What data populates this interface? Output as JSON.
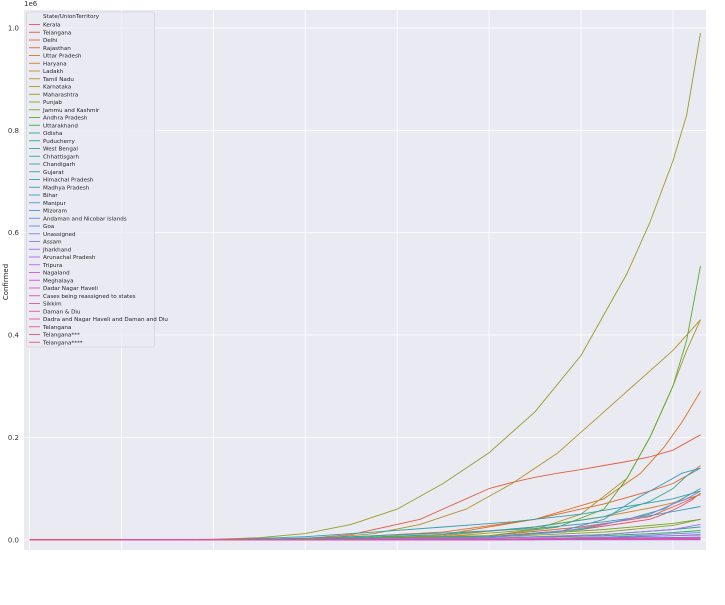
{
  "chart_data": {
    "type": "line",
    "title": "",
    "xlabel": "",
    "ylabel": "Confirmed",
    "y_offset_label": "1e6",
    "ylim": [
      -0.02,
      1.035
    ],
    "xlim": [
      -1.2,
      147.2
    ],
    "y_ticks": [
      {
        "value": 0.0,
        "label": "0.0"
      },
      {
        "value": 0.2,
        "label": "0.2"
      },
      {
        "value": 0.4,
        "label": "0.4"
      },
      {
        "value": 0.6,
        "label": "0.6"
      },
      {
        "value": 0.8,
        "label": "0.8"
      },
      {
        "value": 1.0,
        "label": "1.0"
      }
    ],
    "x_gridlines": [
      0,
      20,
      40,
      60,
      80,
      100,
      120,
      140
    ],
    "grid": true,
    "legend_position": "top-left",
    "legend_title": "State/UnionTerritory",
    "series": [
      {
        "name": "Kerala",
        "color": "#e6526c",
        "x": [
          0,
          60,
          100,
          120,
          135,
          138,
          141,
          144,
          146
        ],
        "y": [
          1e-06,
          0.0005,
          0.006,
          0.02,
          0.04,
          0.05,
          0.062,
          0.077,
          0.091
        ]
      },
      {
        "name": "Telangana",
        "color": "#e4584a",
        "x": [
          0,
          60,
          100,
          120,
          135,
          138,
          141,
          144,
          146
        ],
        "y": [
          0.0,
          0.001,
          0.008,
          0.025,
          0.045,
          0.057,
          0.068,
          0.08,
          0.09
        ]
      },
      {
        "name": "Delhi",
        "color": "#e1603e",
        "x": [
          0,
          58,
          70,
          85,
          95,
          100,
          105,
          110,
          115,
          120,
          125,
          130,
          135,
          140,
          146
        ],
        "y": [
          0.0,
          0.001,
          0.01,
          0.04,
          0.08,
          0.1,
          0.112,
          0.122,
          0.13,
          0.137,
          0.145,
          0.153,
          0.162,
          0.175,
          0.205
        ]
      },
      {
        "name": "Rajasthan",
        "color": "#dc6a2e",
        "x": [
          0,
          60,
          90,
          110,
          125,
          135,
          140,
          143,
          146
        ],
        "y": [
          0.0,
          0.001,
          0.015,
          0.04,
          0.07,
          0.095,
          0.11,
          0.125,
          0.145
        ]
      },
      {
        "name": "Uttar Pradesh",
        "color": "#d7731f",
        "x": [
          0,
          60,
          90,
          110,
          125,
          133,
          138,
          142,
          146
        ],
        "y": [
          0.0,
          0.001,
          0.01,
          0.04,
          0.08,
          0.13,
          0.18,
          0.23,
          0.29
        ]
      },
      {
        "name": "Haryana",
        "color": "#c98626",
        "x": [
          0,
          60,
          90,
          110,
          125,
          135,
          140,
          143,
          146
        ],
        "y": [
          0.0,
          0.0005,
          0.008,
          0.025,
          0.045,
          0.062,
          0.072,
          0.08,
          0.088
        ]
      },
      {
        "name": "Ladakh",
        "color": "#bd8e27",
        "x": [
          0,
          100,
          146
        ],
        "y": [
          0.0,
          0.0005,
          0.003
        ]
      },
      {
        "name": "Tamil Nadu",
        "color": "#b39326",
        "x": [
          0,
          55,
          65,
          75,
          85,
          95,
          105,
          115,
          125,
          135,
          140,
          146
        ],
        "y": [
          0.0,
          0.001,
          0.004,
          0.012,
          0.03,
          0.06,
          0.11,
          0.17,
          0.25,
          0.33,
          0.37,
          0.43
        ]
      },
      {
        "name": "Karnataka",
        "color": "#a69825",
        "x": [
          0,
          60,
          90,
          110,
          120,
          130,
          135,
          140,
          143,
          146
        ],
        "y": [
          0.0,
          0.001,
          0.006,
          0.02,
          0.05,
          0.12,
          0.2,
          0.3,
          0.37,
          0.43
        ]
      },
      {
        "name": "Maharashtra",
        "color": "#989d25",
        "x": [
          0,
          20,
          40,
          50,
          60,
          70,
          80,
          90,
          100,
          110,
          120,
          125,
          130,
          135,
          140,
          143,
          146
        ],
        "y": [
          0.0,
          0.0,
          0.001,
          0.004,
          0.012,
          0.03,
          0.06,
          0.11,
          0.17,
          0.25,
          0.36,
          0.44,
          0.52,
          0.62,
          0.74,
          0.83,
          0.99
        ]
      },
      {
        "name": "Punjab",
        "color": "#89a226",
        "x": [
          0,
          60,
          100,
          125,
          140,
          146
        ],
        "y": [
          0.0,
          0.0005,
          0.005,
          0.015,
          0.028,
          0.04
        ]
      },
      {
        "name": "Jammu and Kashmir",
        "color": "#78a628",
        "x": [
          0,
          60,
          100,
          125,
          140,
          146
        ],
        "y": [
          0.0,
          0.0005,
          0.006,
          0.02,
          0.032,
          0.04
        ]
      },
      {
        "name": "Andhra Pradesh",
        "color": "#5daa2b",
        "x": [
          0,
          60,
          100,
          115,
          125,
          130,
          135,
          140,
          143,
          146
        ],
        "y": [
          0.0,
          0.001,
          0.008,
          0.025,
          0.06,
          0.12,
          0.2,
          0.3,
          0.39,
          0.535
        ]
      },
      {
        "name": "Uttarakhand",
        "color": "#2fae4a",
        "x": [
          0,
          60,
          100,
          125,
          140,
          146
        ],
        "y": [
          0.0,
          0.0003,
          0.003,
          0.008,
          0.014,
          0.018
        ]
      },
      {
        "name": "Odisha",
        "color": "#30ab6f",
        "x": [
          0,
          60,
          100,
          120,
          130,
          138,
          142,
          146
        ],
        "y": [
          0.0,
          0.0005,
          0.006,
          0.02,
          0.04,
          0.06,
          0.08,
          0.1
        ]
      },
      {
        "name": "Puducherry",
        "color": "#31a882",
        "x": [
          0,
          60,
          100,
          125,
          140,
          146
        ],
        "y": [
          0.0,
          0.0001,
          0.001,
          0.004,
          0.008,
          0.01
        ]
      },
      {
        "name": "West Bengal",
        "color": "#32a68f",
        "x": [
          0,
          60,
          90,
          110,
          125,
          135,
          140,
          143,
          146
        ],
        "y": [
          0.0,
          0.001,
          0.01,
          0.025,
          0.045,
          0.075,
          0.1,
          0.125,
          0.14
        ]
      },
      {
        "name": "Chhattisgarh",
        "color": "#33a498",
        "x": [
          0,
          60,
          100,
          125,
          140,
          146
        ],
        "y": [
          0.0,
          0.0003,
          0.003,
          0.01,
          0.02,
          0.025
        ]
      },
      {
        "name": "Chandigarh",
        "color": "#34a2a0",
        "x": [
          0,
          60,
          100,
          125,
          146
        ],
        "y": [
          0.0,
          0.0002,
          0.0008,
          0.002,
          0.004
        ]
      },
      {
        "name": "Gujarat",
        "color": "#35a1a7",
        "x": [
          0,
          45,
          60,
          75,
          90,
          105,
          120,
          130,
          140,
          146
        ],
        "y": [
          0.0,
          0.001,
          0.006,
          0.015,
          0.025,
          0.035,
          0.05,
          0.065,
          0.08,
          0.095
        ]
      },
      {
        "name": "Himachal Pradesh",
        "color": "#379fae",
        "x": [
          0,
          60,
          100,
          125,
          146
        ],
        "y": [
          0.0,
          0.0002,
          0.001,
          0.003,
          0.005
        ]
      },
      {
        "name": "Madhya Pradesh",
        "color": "#399db6",
        "x": [
          0,
          50,
          70,
          90,
          110,
          125,
          135,
          140,
          146
        ],
        "y": [
          0.0,
          0.001,
          0.006,
          0.013,
          0.022,
          0.035,
          0.047,
          0.055,
          0.065
        ]
      },
      {
        "name": "Bihar",
        "color": "#3b9bc0",
        "x": [
          0,
          60,
          100,
          115,
          125,
          132,
          138,
          142,
          146
        ],
        "y": [
          0.0,
          0.0003,
          0.005,
          0.015,
          0.04,
          0.08,
          0.11,
          0.13,
          0.14
        ]
      },
      {
        "name": "Manipur",
        "color": "#3e98cc",
        "x": [
          0,
          100,
          146
        ],
        "y": [
          0.0,
          0.0003,
          0.005
        ]
      },
      {
        "name": "Mizoram",
        "color": "#4294dc",
        "x": [
          0,
          100,
          146
        ],
        "y": [
          0.0,
          0.0001,
          0.001
        ]
      },
      {
        "name": "Andaman and Nicobar Islands",
        "color": "#4d8ee9",
        "x": [
          0,
          100,
          146
        ],
        "y": [
          0.0,
          0.0002,
          0.003
        ]
      },
      {
        "name": "Goa",
        "color": "#6488ec",
        "x": [
          0,
          100,
          125,
          146
        ],
        "y": [
          0.0,
          0.001,
          0.005,
          0.014
        ]
      },
      {
        "name": "Unassigned",
        "color": "#7782ec",
        "x": [
          0,
          100,
          146
        ],
        "y": [
          0.0,
          0.0,
          0.0
        ]
      },
      {
        "name": "Assam",
        "color": "#8a7ced",
        "x": [
          0,
          60,
          100,
          115,
          125,
          135,
          140,
          143,
          146
        ],
        "y": [
          0.0,
          0.0003,
          0.005,
          0.015,
          0.03,
          0.05,
          0.07,
          0.08,
          0.095
        ]
      },
      {
        "name": "Jharkhand",
        "color": "#9e73ed",
        "x": [
          0,
          60,
          100,
          125,
          140,
          146
        ],
        "y": [
          0.0,
          0.0003,
          0.003,
          0.01,
          0.02,
          0.03
        ]
      },
      {
        "name": "Arunachal Pradesh",
        "color": "#b06aec",
        "x": [
          0,
          100,
          146
        ],
        "y": [
          0.0,
          0.0002,
          0.003
        ]
      },
      {
        "name": "Tripura",
        "color": "#c460ea",
        "x": [
          0,
          100,
          146
        ],
        "y": [
          0.0,
          0.001,
          0.009
        ]
      },
      {
        "name": "Nagaland",
        "color": "#d255e0",
        "x": [
          0,
          100,
          146
        ],
        "y": [
          0.0,
          0.0003,
          0.004
        ]
      },
      {
        "name": "Meghalaya",
        "color": "#dc4fd3",
        "x": [
          0,
          100,
          146
        ],
        "y": [
          0.0,
          0.0002,
          0.002
        ]
      },
      {
        "name": "Dadar Nagar Haveli",
        "color": "#e14cc7",
        "x": [
          0,
          100
        ],
        "y": [
          0.0,
          0.0001
        ]
      },
      {
        "name": "Cases being reassigned to states",
        "color": "#e54bbb",
        "x": [
          0,
          100,
          110
        ],
        "y": [
          0.0,
          0.0,
          0.0
        ]
      },
      {
        "name": "Sikkim",
        "color": "#e74caf",
        "x": [
          0,
          100,
          146
        ],
        "y": [
          0.0,
          0.0001,
          0.001
        ]
      },
      {
        "name": "Daman & Diu",
        "color": "#e84da2",
        "x": [
          0,
          100
        ],
        "y": [
          0.0,
          0.0001
        ]
      },
      {
        "name": "Dadra and Nagar Haveli and Daman and Diu",
        "color": "#e94f94",
        "x": [
          0,
          100,
          146
        ],
        "y": [
          0.0,
          0.0003,
          0.002
        ]
      },
      {
        "name": "Telangana",
        "color": "#ea5185",
        "x": [
          0,
          20
        ],
        "y": [
          0.0,
          0.0
        ]
      },
      {
        "name": "Telangana***",
        "color": "#ea5377",
        "x": [
          0,
          20
        ],
        "y": [
          0.0,
          0.0
        ]
      },
      {
        "name": "Telangana****",
        "color": "#e9556a",
        "x": [
          0,
          20
        ],
        "y": [
          0.0,
          0.0
        ]
      }
    ]
  }
}
